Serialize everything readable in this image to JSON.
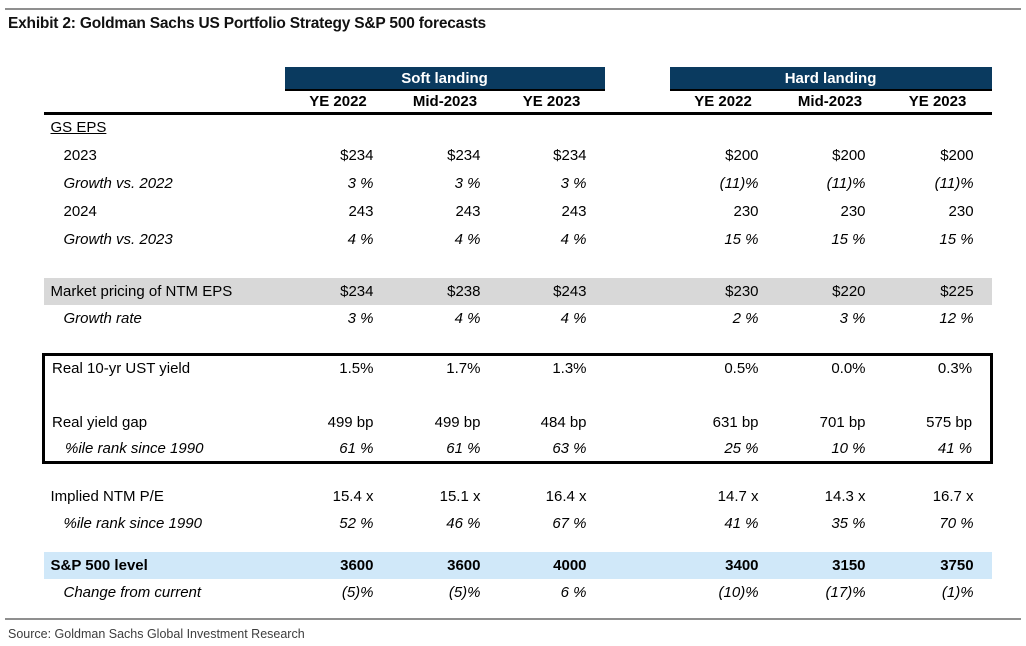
{
  "title": "Exhibit 2: Goldman Sachs US Portfolio Strategy S&P 500 forecasts",
  "source": "Source: Goldman Sachs Global Investment Research",
  "colors": {
    "navy_header": "#0a3a5f",
    "gray_band": "#d8d8d8",
    "blue_band": "#d0e8f9",
    "rule_gray": "#8f8f8f"
  },
  "table": {
    "scenarios": [
      {
        "label": "Soft landing"
      },
      {
        "label": "Hard landing"
      }
    ],
    "column_headers": [
      "YE 2022",
      "Mid-2023",
      "YE 2023"
    ],
    "rows": {
      "gs_eps_header": {
        "label": "GS EPS"
      },
      "eps_2023": {
        "label": "2023",
        "soft": [
          "$234",
          "$234",
          "$234"
        ],
        "hard": [
          "$200",
          "$200",
          "$200"
        ]
      },
      "growth_vs_2022": {
        "label": "Growth vs. 2022",
        "soft": [
          "3 %",
          "3 %",
          "3 %"
        ],
        "hard": [
          "(11)%",
          "(11)%",
          "(11)%"
        ]
      },
      "eps_2024": {
        "label": "2024",
        "soft": [
          "243",
          "243",
          "243"
        ],
        "hard": [
          "230",
          "230",
          "230"
        ]
      },
      "growth_vs_2023": {
        "label": "Growth vs. 2023",
        "soft": [
          "4 %",
          "4 %",
          "4 %"
        ],
        "hard": [
          "15 %",
          "15 %",
          "15 %"
        ]
      },
      "market_pricing": {
        "label": "Market pricing of NTM EPS",
        "soft": [
          "$234",
          "$238",
          "$243"
        ],
        "hard": [
          "$230",
          "$220",
          "$225"
        ]
      },
      "growth_rate": {
        "label": "Growth rate",
        "soft": [
          "3 %",
          "4 %",
          "4 %"
        ],
        "hard": [
          "2 %",
          "3 %",
          "12 %"
        ]
      },
      "real_ust_yield": {
        "label": "Real 10-yr UST yield",
        "soft": [
          "1.5%",
          "1.7%",
          "1.3%"
        ],
        "hard": [
          "0.5%",
          "0.0%",
          "0.3%"
        ]
      },
      "real_yield_gap": {
        "label": "Real yield gap",
        "soft": [
          "499 bp",
          "499 bp",
          "484 bp"
        ],
        "hard": [
          "631 bp",
          "701 bp",
          "575 bp"
        ]
      },
      "yield_gap_rank": {
        "label": "%ile rank since 1990",
        "soft": [
          "61 %",
          "61 %",
          "63 %"
        ],
        "hard": [
          "25 %",
          "10 %",
          "41 %"
        ]
      },
      "implied_pe": {
        "label": "Implied NTM P/E",
        "soft": [
          "15.4 x",
          "15.1 x",
          "16.4 x"
        ],
        "hard": [
          "14.7 x",
          "14.3 x",
          "16.7 x"
        ]
      },
      "pe_rank": {
        "label": "%ile rank since 1990",
        "soft": [
          "52 %",
          "46 %",
          "67 %"
        ],
        "hard": [
          "41 %",
          "35 %",
          "70 %"
        ]
      },
      "sp500_level": {
        "label": "S&P 500 level",
        "soft": [
          "3600",
          "3600",
          "4000"
        ],
        "hard": [
          "3400",
          "3150",
          "3750"
        ]
      },
      "change_from_current": {
        "label": "Change from current",
        "soft": [
          "(5)%",
          "(5)%",
          "6 %"
        ],
        "hard": [
          "(10)%",
          "(17)%",
          "(1)%"
        ]
      }
    }
  }
}
